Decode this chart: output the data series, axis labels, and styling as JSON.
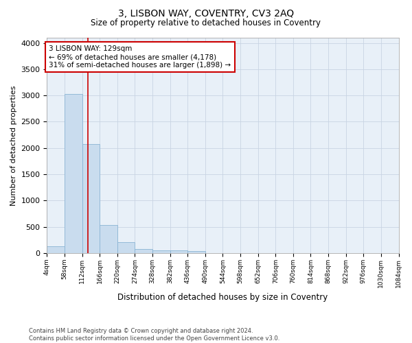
{
  "title": "3, LISBON WAY, COVENTRY, CV3 2AQ",
  "subtitle": "Size of property relative to detached houses in Coventry",
  "xlabel": "Distribution of detached houses by size in Coventry",
  "ylabel": "Number of detached properties",
  "footer_line1": "Contains HM Land Registry data © Crown copyright and database right 2024.",
  "footer_line2": "Contains public sector information licensed under the Open Government Licence v3.0.",
  "annotation_line1": "3 LISBON WAY: 129sqm",
  "annotation_line2": "← 69% of detached houses are smaller (4,178)",
  "annotation_line3": "31% of semi-detached houses are larger (1,898) →",
  "bar_color": "#c9dcee",
  "bar_edge_color": "#8ab4d4",
  "vline_color": "#cc0000",
  "vline_x": 129,
  "bin_width": 54,
  "bin_starts": [
    4,
    58,
    112,
    166,
    220,
    274,
    328,
    382,
    436,
    490,
    544,
    598,
    652,
    706,
    760,
    814,
    868,
    922,
    976,
    1030
  ],
  "bin_heights": [
    130,
    3030,
    2070,
    540,
    205,
    75,
    50,
    45,
    40,
    0,
    0,
    0,
    0,
    0,
    0,
    0,
    0,
    0,
    0,
    0
  ],
  "xlim_left": 4,
  "xlim_right": 1084,
  "ylim_top": 4100,
  "yticks": [
    0,
    500,
    1000,
    1500,
    2000,
    2500,
    3000,
    3500,
    4000
  ],
  "grid_color": "#c8d4e3",
  "background_color": "#e8f0f8",
  "xtick_positions": [
    4,
    58,
    112,
    166,
    220,
    274,
    328,
    382,
    436,
    490,
    544,
    598,
    652,
    706,
    760,
    814,
    868,
    922,
    976,
    1030,
    1084
  ],
  "xtick_labels": [
    "4sqm",
    "58sqm",
    "112sqm",
    "166sqm",
    "220sqm",
    "274sqm",
    "328sqm",
    "382sqm",
    "436sqm",
    "490sqm",
    "544sqm",
    "598sqm",
    "652sqm",
    "706sqm",
    "760sqm",
    "814sqm",
    "868sqm",
    "922sqm",
    "976sqm",
    "1030sqm",
    "1084sqm"
  ]
}
